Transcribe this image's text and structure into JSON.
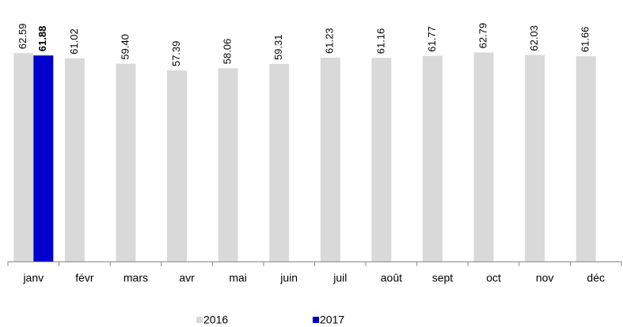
{
  "chart_data": {
    "type": "bar",
    "categories": [
      "janv",
      "févr",
      "mars",
      "avr",
      "mai",
      "juin",
      "juil",
      "août",
      "sept",
      "oct",
      "nov",
      "déc"
    ],
    "series": [
      {
        "name": "2016",
        "color": "#d9d9d9",
        "values": [
          62.59,
          61.02,
          59.4,
          57.39,
          58.06,
          59.31,
          61.23,
          61.16,
          61.77,
          62.79,
          62.03,
          61.66
        ],
        "value_labels": [
          "62.59",
          "61.02",
          "59.40",
          "57.39",
          "58.06",
          "59.31",
          "61.23",
          "61.16",
          "61.77",
          "62.79",
          "62.03",
          "61.66"
        ]
      },
      {
        "name": "2017",
        "color": "#0000cc",
        "values": [
          61.88,
          null,
          null,
          null,
          null,
          null,
          null,
          null,
          null,
          null,
          null,
          null
        ],
        "value_labels": [
          "61.88",
          null,
          null,
          null,
          null,
          null,
          null,
          null,
          null,
          null,
          null,
          null
        ]
      }
    ],
    "ylim": [
      0,
      70
    ]
  }
}
